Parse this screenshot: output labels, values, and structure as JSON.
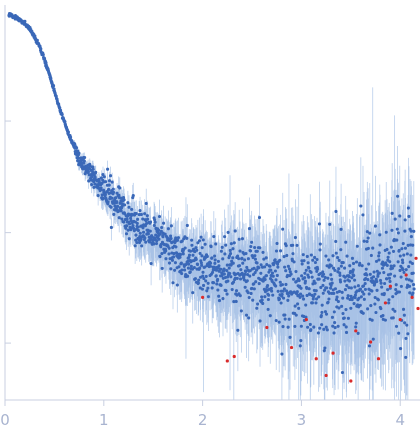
{
  "chart_data": {
    "type": "scatter",
    "title": "",
    "xlabel": "",
    "ylabel": "",
    "xlim": [
      0,
      4.2
    ],
    "ylim_log10": [
      -3.47,
      0.07
    ],
    "y_scale": "log",
    "x_ticks": [
      "0",
      "1",
      "2",
      "3",
      "4"
    ],
    "x_tick_values": [
      0,
      1,
      2,
      3,
      4
    ],
    "y_tick_values_log10": [
      -0.97,
      -1.97,
      -2.96
    ],
    "grid": false,
    "legend": "none",
    "colors": {
      "points": "#3a68b8",
      "error_bars": "#a8c2e6",
      "outliers": "#d92b2b",
      "axis": "#c8cfe0",
      "ticks": "#a9b4d0"
    },
    "series": [
      {
        "kind": "points",
        "description_points": [
          [
            0.05,
            -0.02
          ],
          [
            0.15,
            -0.06
          ],
          [
            0.25,
            -0.14
          ],
          [
            0.35,
            -0.3
          ],
          [
            0.45,
            -0.55
          ],
          [
            0.55,
            -0.85
          ],
          [
            0.65,
            -1.1
          ],
          [
            0.75,
            -1.3
          ],
          [
            0.85,
            -1.45
          ],
          [
            0.95,
            -1.55
          ],
          [
            1.05,
            -1.62
          ],
          [
            1.2,
            -1.78
          ],
          [
            1.4,
            -1.95
          ],
          [
            1.6,
            -2.08
          ],
          [
            1.8,
            -2.2
          ],
          [
            2.0,
            -2.28
          ],
          [
            2.2,
            -2.33
          ],
          [
            2.4,
            -2.37
          ],
          [
            2.6,
            -2.39
          ],
          [
            2.8,
            -2.42
          ],
          [
            3.0,
            -2.45
          ],
          [
            3.2,
            -2.44
          ],
          [
            3.4,
            -2.43
          ],
          [
            3.6,
            -2.41
          ],
          [
            3.8,
            -2.38
          ],
          [
            4.0,
            -2.32
          ],
          [
            4.15,
            -2.28
          ]
        ]
      },
      {
        "kind": "outliers",
        "points": [
          [
            2.0,
            -2.55
          ],
          [
            2.25,
            -3.12
          ],
          [
            2.32,
            -3.08
          ],
          [
            2.65,
            -2.82
          ],
          [
            2.9,
            -3.0
          ],
          [
            3.05,
            -2.75
          ],
          [
            3.15,
            -3.1
          ],
          [
            3.25,
            -3.25
          ],
          [
            3.32,
            -3.05
          ],
          [
            3.5,
            -3.3
          ],
          [
            3.55,
            -2.85
          ],
          [
            3.7,
            -2.95
          ],
          [
            3.78,
            -3.1
          ],
          [
            3.85,
            -2.6
          ],
          [
            3.9,
            -2.45
          ],
          [
            4.0,
            -2.75
          ],
          [
            4.06,
            -2.35
          ],
          [
            4.12,
            -2.55
          ],
          [
            4.16,
            -2.2
          ],
          [
            4.18,
            -2.65
          ]
        ]
      }
    ]
  }
}
